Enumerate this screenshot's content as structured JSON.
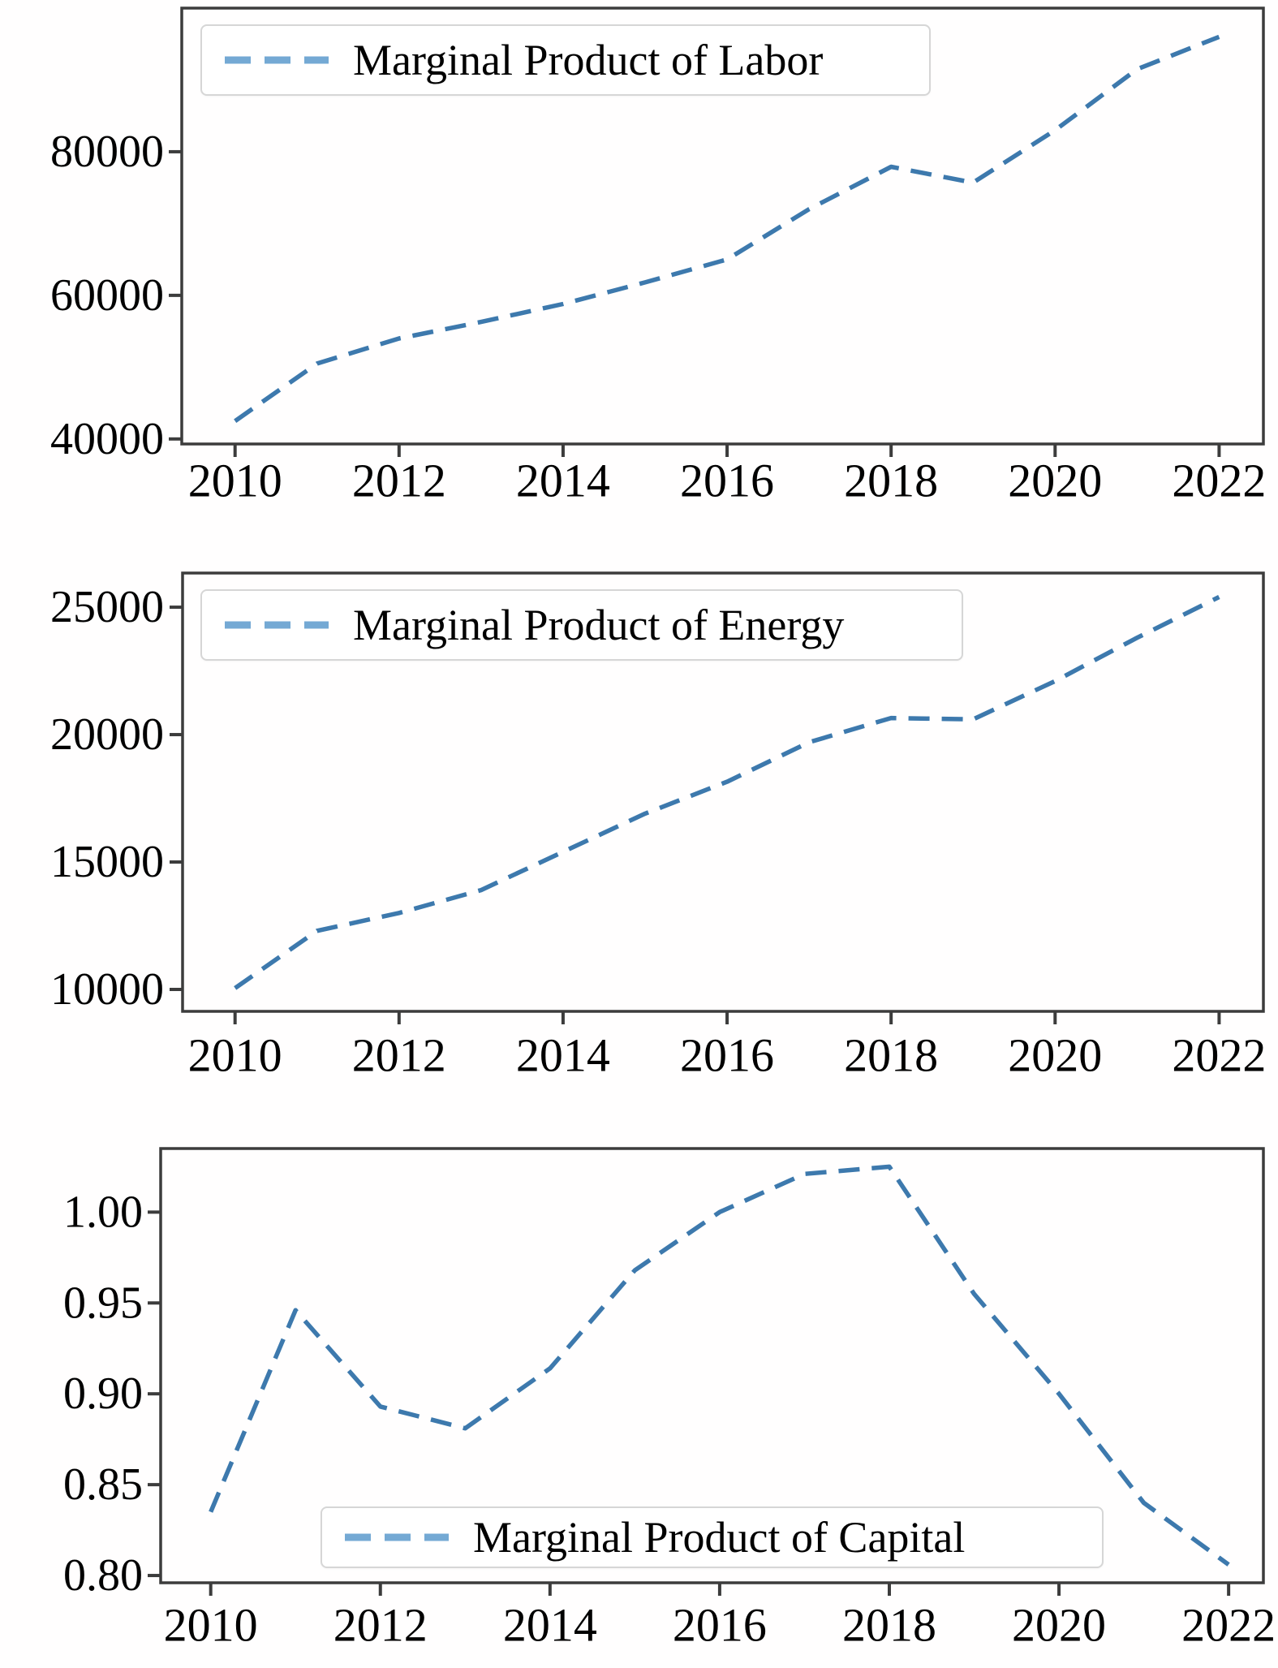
{
  "figure": {
    "background": "#ffffff",
    "line_color": "#3d79ad",
    "legend_sample_color": "#74a9d4",
    "axis_color": "#3c3c3c",
    "text_color": "#000000"
  },
  "chart_data": [
    {
      "type": "line",
      "legend_label": "Marginal Product of Labor",
      "legend_position": "upper left",
      "line_style": "dashed",
      "grid": false,
      "x": [
        2010,
        2011,
        2012,
        2013,
        2014,
        2015,
        2016,
        2017,
        2018,
        2019,
        2020,
        2021,
        2022
      ],
      "values": [
        42500,
        50500,
        54000,
        56300,
        58800,
        61800,
        65000,
        72000,
        77900,
        75700,
        83000,
        91500,
        96000
      ],
      "xtick_labels": [
        "2010",
        "2012",
        "2014",
        "2016",
        "2018",
        "2020",
        "2022"
      ],
      "xticks": [
        2010,
        2012,
        2014,
        2016,
        2018,
        2020,
        2022
      ],
      "ytick_labels": [
        "80000",
        "60000",
        "40000"
      ],
      "yticks": [
        80000,
        60000,
        40000
      ],
      "xlim": [
        2009.35,
        2022.54
      ],
      "ylim": [
        39300,
        100000
      ]
    },
    {
      "type": "line",
      "legend_label": "Marginal Product of Energy",
      "legend_position": "upper left",
      "line_style": "dashed",
      "grid": false,
      "x": [
        2010,
        2011,
        2012,
        2013,
        2014,
        2015,
        2016,
        2017,
        2018,
        2019,
        2020,
        2021,
        2022
      ],
      "values": [
        10050,
        12300,
        13000,
        13900,
        15400,
        16900,
        18150,
        19700,
        20650,
        20600,
        22100,
        23800,
        25400
      ],
      "xtick_labels": [
        "2010",
        "2012",
        "2014",
        "2016",
        "2018",
        "2020",
        "2022"
      ],
      "xticks": [
        2010,
        2012,
        2014,
        2016,
        2018,
        2020,
        2022
      ],
      "ytick_labels": [
        "25000",
        "20000",
        "15000",
        "10000"
      ],
      "yticks": [
        25000,
        20000,
        15000,
        10000
      ],
      "xlim": [
        2009.36,
        2022.54
      ],
      "ylim": [
        9140,
        26340
      ]
    },
    {
      "type": "line",
      "legend_label": "Marginal Product of Capital",
      "legend_position": "lower center",
      "line_style": "dashed",
      "grid": false,
      "x": [
        2010,
        2011,
        2012,
        2013,
        2014,
        2015,
        2016,
        2017,
        2018,
        2019,
        2020,
        2021,
        2022
      ],
      "values": [
        0.835,
        0.946,
        0.893,
        0.881,
        0.914,
        0.968,
        1.0,
        1.021,
        1.025,
        0.955,
        0.9,
        0.84,
        0.806
      ],
      "xtick_labels": [
        "2010",
        "2012",
        "2014",
        "2016",
        "2018",
        "2020",
        "2022"
      ],
      "xticks": [
        2010,
        2012,
        2014,
        2016,
        2018,
        2020,
        2022
      ],
      "ytick_labels": [
        "1.00",
        "0.95",
        "0.90",
        "0.85",
        "0.80"
      ],
      "yticks": [
        1.0,
        0.95,
        0.9,
        0.85,
        0.8
      ],
      "xlim": [
        2009.41,
        2022.41
      ],
      "ylim": [
        0.796,
        1.035
      ]
    }
  ]
}
